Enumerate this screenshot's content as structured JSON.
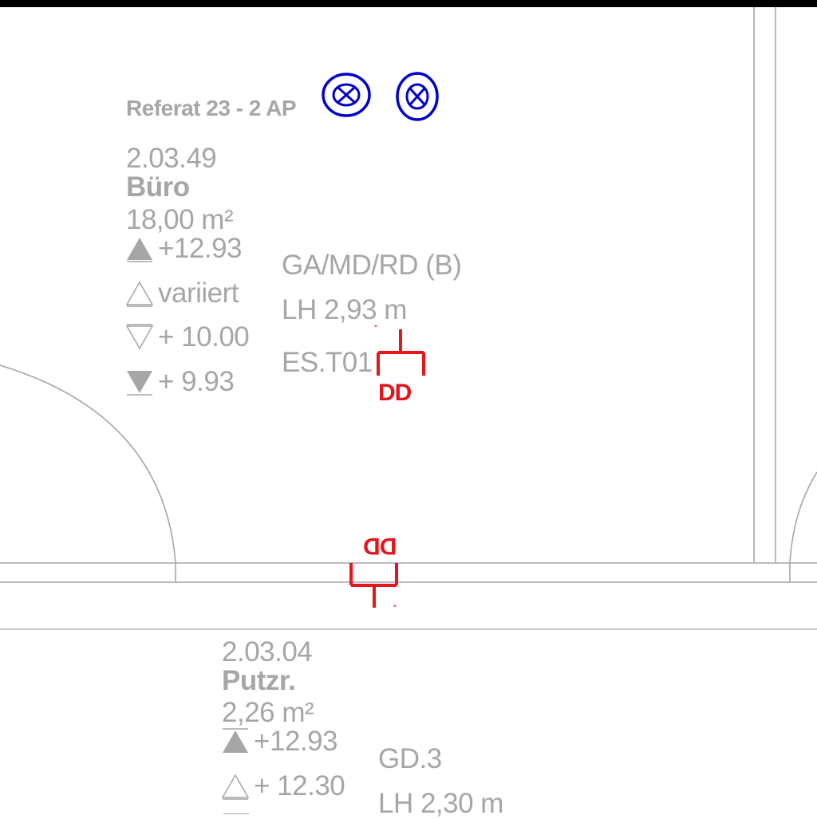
{
  "colors": {
    "wall": "#a6a6a6",
    "label": "#a6a6a6",
    "symbol_red": "#e8141c",
    "symbol_blue": "#0000cc",
    "top_bar": "#000000"
  },
  "group_label": "Referat 23 -  2 AP",
  "room_upper": {
    "number": "2.03.49",
    "name": "Büro",
    "area": "18,00 m²",
    "levels": [
      {
        "icon": "filled-up-triangle-icon",
        "text": "+12.93"
      },
      {
        "icon": "outline-up-triangle-icon",
        "text": "variiert"
      },
      {
        "icon": "outline-down-triangle-icon",
        "text": "+ 10.00"
      },
      {
        "icon": "filled-down-triangle-icon",
        "text": "+ 9.93"
      }
    ],
    "usage": "GA/MD/RD (B)",
    "clear_height": "LH 2,93 m",
    "fixture_code": "ES.T01"
  },
  "symbols": {
    "upper_outlet_label": "DD",
    "lower_outlet_label": "DD",
    "upper_outlet_mark": "-",
    "lower_outlet_mark": "-"
  },
  "room_lower": {
    "number": "2.03.04",
    "name": "Putzr.",
    "area": "2,26 m²",
    "levels": [
      {
        "icon": "filled-up-triangle-icon",
        "text": "+12.93"
      },
      {
        "icon": "outline-up-triangle-icon",
        "text": "+ 12.30"
      }
    ],
    "usage": "GD.3",
    "clear_height": "LH 2,30 m"
  }
}
